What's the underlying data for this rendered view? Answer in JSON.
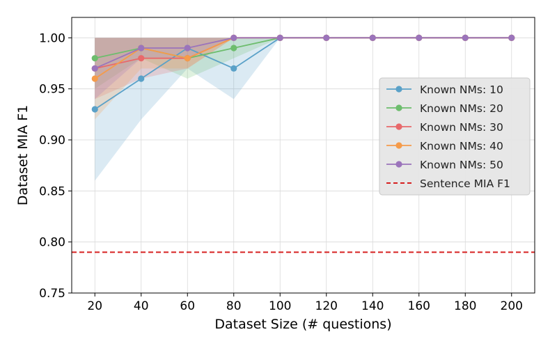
{
  "chart_data": {
    "type": "line",
    "xlabel": "Dataset Size (# questions)",
    "ylabel": "Dataset MIA F1",
    "x": [
      20,
      40,
      60,
      80,
      100,
      120,
      140,
      160,
      180,
      200
    ],
    "xlim": [
      10,
      210
    ],
    "ylim": [
      0.75,
      1.02
    ],
    "xticks": [
      "20",
      "40",
      "60",
      "80",
      "100",
      "120",
      "140",
      "160",
      "180",
      "200"
    ],
    "yticks": [
      "0.75",
      "0.80",
      "0.85",
      "0.90",
      "0.95",
      "1.00"
    ],
    "grid": true,
    "legend_position": "center-right",
    "series": [
      {
        "name": "Known NMs: 10",
        "color": "#5aa1c8",
        "values": [
          0.93,
          0.96,
          0.99,
          0.97,
          1.0,
          1.0,
          1.0,
          1.0,
          1.0,
          1.0
        ],
        "lower": [
          0.86,
          0.92,
          0.97,
          0.94,
          1.0,
          1.0,
          1.0,
          1.0,
          1.0,
          1.0
        ],
        "upper": [
          1.0,
          1.0,
          1.0,
          1.0,
          1.0,
          1.0,
          1.0,
          1.0,
          1.0,
          1.0
        ]
      },
      {
        "name": "Known NMs: 20",
        "color": "#6dbd6d",
        "values": [
          0.98,
          0.99,
          0.98,
          0.99,
          1.0,
          1.0,
          1.0,
          1.0,
          1.0,
          1.0
        ],
        "lower": [
          0.95,
          0.98,
          0.96,
          0.98,
          1.0,
          1.0,
          1.0,
          1.0,
          1.0,
          1.0
        ],
        "upper": [
          1.0,
          1.0,
          1.0,
          1.0,
          1.0,
          1.0,
          1.0,
          1.0,
          1.0,
          1.0
        ]
      },
      {
        "name": "Known NMs: 30",
        "color": "#e8696b",
        "values": [
          0.97,
          0.98,
          0.98,
          1.0,
          1.0,
          1.0,
          1.0,
          1.0,
          1.0,
          1.0
        ],
        "lower": [
          0.94,
          0.96,
          0.97,
          1.0,
          1.0,
          1.0,
          1.0,
          1.0,
          1.0,
          1.0
        ],
        "upper": [
          1.0,
          1.0,
          1.0,
          1.0,
          1.0,
          1.0,
          1.0,
          1.0,
          1.0,
          1.0
        ]
      },
      {
        "name": "Known NMs: 40",
        "color": "#f59b4a",
        "values": [
          0.96,
          0.99,
          0.98,
          1.0,
          1.0,
          1.0,
          1.0,
          1.0,
          1.0,
          1.0
        ],
        "lower": [
          0.92,
          0.97,
          0.97,
          1.0,
          1.0,
          1.0,
          1.0,
          1.0,
          1.0,
          1.0
        ],
        "upper": [
          1.0,
          1.0,
          1.0,
          1.0,
          1.0,
          1.0,
          1.0,
          1.0,
          1.0,
          1.0
        ]
      },
      {
        "name": "Known NMs: 50",
        "color": "#9b74bb",
        "values": [
          0.97,
          0.99,
          0.99,
          1.0,
          1.0,
          1.0,
          1.0,
          1.0,
          1.0,
          1.0
        ],
        "lower": [
          0.94,
          0.98,
          0.98,
          1.0,
          1.0,
          1.0,
          1.0,
          1.0,
          1.0,
          1.0
        ],
        "upper": [
          1.0,
          1.0,
          1.0,
          1.0,
          1.0,
          1.0,
          1.0,
          1.0,
          1.0,
          1.0
        ]
      }
    ],
    "reference_line": {
      "name": "Sentence MIA F1",
      "value": 0.79,
      "color": "#d62020",
      "style": "dashed"
    }
  }
}
